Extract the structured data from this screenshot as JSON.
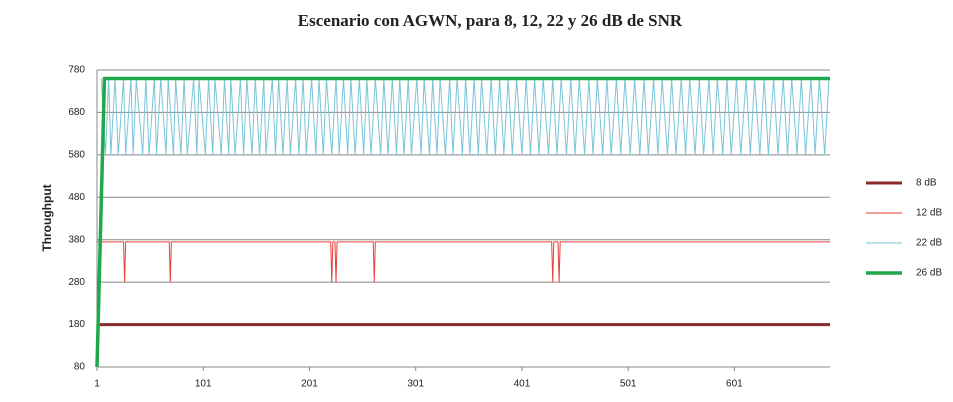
{
  "chart_data": {
    "type": "line",
    "title": "Escenario con AGWN, para  8, 12, 22 y 26 dB de SNR",
    "y_label": "Throughput",
    "xlim": [
      1,
      691
    ],
    "xticks": [
      1,
      101,
      201,
      301,
      401,
      501,
      601
    ],
    "ylim": [
      80,
      780
    ],
    "yticks": [
      80,
      180,
      280,
      380,
      480,
      580,
      680,
      780
    ],
    "grid": true,
    "legend": "right",
    "series": [
      {
        "name": "8 dB",
        "color": "#8b2a2a",
        "width": 3,
        "x": [
          1,
          691
        ],
        "values": [
          180,
          180
        ]
      },
      {
        "name": "12 dB",
        "color": "#e8403a",
        "width": 1,
        "x": [
          1,
          26,
          27,
          28,
          69,
          70,
          71,
          221,
          222,
          223,
          225,
          226,
          227,
          261,
          262,
          263,
          429,
          430,
          431,
          435,
          436,
          437,
          691
        ],
        "values": [
          375,
          375,
          280,
          375,
          375,
          280,
          375,
          375,
          280,
          375,
          375,
          280,
          375,
          375,
          280,
          375,
          375,
          280,
          375,
          375,
          280,
          375,
          375
        ]
      },
      {
        "name": "22 dB",
        "color": "#7ac4d8",
        "width": 1,
        "x": [
          5,
          9,
          12,
          14,
          18,
          21,
          26,
          28,
          33,
          35,
          38,
          44,
          47,
          50,
          55,
          57,
          61,
          66,
          68,
          73,
          75,
          80,
          83,
          86,
          92,
          95,
          97,
          103,
          106,
          110,
          112,
          118,
          121,
          125,
          127,
          131,
          136,
          139,
          142,
          147,
          150,
          154,
          158,
          160,
          166,
          169,
          172,
          176,
          180,
          183,
          188,
          191,
          195,
          198,
          203,
          207,
          210,
          214,
          217,
          222,
          226,
          229,
          233,
          237,
          240,
          244,
          248,
          252,
          255,
          259,
          263,
          268,
          271,
          275,
          279,
          283,
          286,
          290,
          294,
          297,
          302,
          306,
          309,
          314,
          317,
          321,
          324,
          329,
          333,
          336,
          340,
          345,
          348,
          352,
          356,
          360,
          363,
          368,
          372,
          376,
          380,
          384,
          388,
          392,
          396,
          401,
          405,
          409,
          413,
          417,
          421,
          426,
          430,
          434,
          438,
          443,
          447,
          451,
          455,
          460,
          464,
          468,
          472,
          477,
          481,
          485,
          490,
          494,
          498,
          503,
          507,
          512,
          516,
          520,
          525,
          529,
          533,
          538,
          542,
          546,
          551,
          555,
          559,
          564,
          568,
          572,
          577,
          581,
          585,
          590,
          594,
          598,
          603,
          607,
          612,
          616,
          620,
          625,
          629,
          633,
          638,
          642,
          647,
          651,
          655,
          660,
          664,
          668,
          673,
          677,
          681,
          686,
          690
        ],
        "values": [
          760,
          580,
          760,
          580,
          760,
          580,
          760,
          580,
          760,
          580,
          760,
          580,
          760,
          580,
          760,
          580,
          760,
          580,
          760,
          580,
          760,
          580,
          760,
          580,
          760,
          580,
          760,
          580,
          760,
          580,
          760,
          580,
          760,
          580,
          760,
          580,
          760,
          580,
          760,
          580,
          760,
          580,
          760,
          580,
          760,
          580,
          760,
          580,
          760,
          580,
          760,
          580,
          760,
          580,
          760,
          580,
          760,
          580,
          760,
          580,
          760,
          580,
          760,
          580,
          760,
          580,
          760,
          580,
          760,
          580,
          760,
          580,
          760,
          580,
          760,
          580,
          760,
          580,
          760,
          580,
          760,
          580,
          760,
          580,
          760,
          580,
          760,
          580,
          760,
          580,
          760,
          580,
          760,
          580,
          760,
          580,
          760,
          580,
          760,
          580,
          760,
          580,
          760,
          580,
          760,
          580,
          760,
          580,
          760,
          580,
          760,
          580,
          760,
          580,
          760,
          580,
          760,
          580,
          760,
          580,
          760,
          580,
          760,
          580,
          760,
          580,
          760,
          580,
          760,
          580,
          760,
          580,
          760,
          580,
          760,
          580,
          760,
          580,
          760,
          580,
          760,
          580,
          760,
          580,
          760,
          580,
          760,
          580,
          760,
          580,
          760,
          580,
          760,
          580,
          760,
          580,
          760,
          580,
          760,
          580,
          760,
          580,
          760,
          580,
          760,
          580,
          760,
          580,
          760,
          580,
          760,
          580,
          760
        ]
      },
      {
        "name": "26 dB",
        "color": "#1fa84a",
        "width": 3.5,
        "x": [
          1,
          8,
          691
        ],
        "values": [
          80,
          760,
          760
        ]
      }
    ]
  }
}
